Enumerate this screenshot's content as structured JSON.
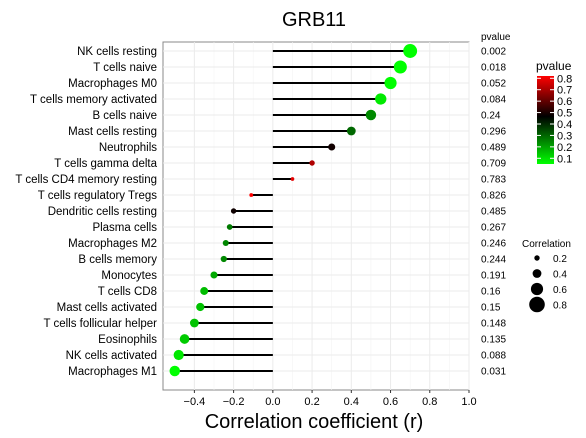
{
  "chart_data": {
    "type": "lollipop",
    "title": "GRB11",
    "xlabel": "Correlation coefficient (r)",
    "xlim": [
      -0.56,
      1.0
    ],
    "xticks": [
      -0.4,
      -0.2,
      0.0,
      0.2,
      0.4,
      0.6,
      0.8,
      1.0
    ],
    "xtick_labels": [
      "−0.4",
      "−0.2",
      "0.0",
      "0.2",
      "0.4",
      "0.6",
      "0.8",
      "1.0"
    ],
    "pvalue_header": "pvalue",
    "grid": true,
    "rows": [
      {
        "label": "NK cells resting",
        "r": 0.7,
        "p": 0.002,
        "p_label": "0.002"
      },
      {
        "label": "T cells naive",
        "r": 0.65,
        "p": 0.018,
        "p_label": "0.018"
      },
      {
        "label": "Macrophages M0",
        "r": 0.6,
        "p": 0.052,
        "p_label": "0.052"
      },
      {
        "label": "T cells memory activated",
        "r": 0.55,
        "p": 0.084,
        "p_label": "0.084"
      },
      {
        "label": "B cells naive",
        "r": 0.5,
        "p": 0.24,
        "p_label": "0.24"
      },
      {
        "label": "Mast cells resting",
        "r": 0.4,
        "p": 0.296,
        "p_label": "0.296"
      },
      {
        "label": "Neutrophils",
        "r": 0.3,
        "p": 0.489,
        "p_label": "0.489"
      },
      {
        "label": "T cells gamma delta",
        "r": 0.2,
        "p": 0.709,
        "p_label": "0.709"
      },
      {
        "label": "T cells CD4 memory resting",
        "r": 0.1,
        "p": 0.783,
        "p_label": "0.783"
      },
      {
        "label": "T cells regulatory Tregs",
        "r": -0.11,
        "p": 0.826,
        "p_label": "0.826"
      },
      {
        "label": "Dendritic cells resting",
        "r": -0.2,
        "p": 0.485,
        "p_label": "0.485"
      },
      {
        "label": "Plasma cells",
        "r": -0.22,
        "p": 0.267,
        "p_label": "0.267"
      },
      {
        "label": "Macrophages M2",
        "r": -0.24,
        "p": 0.246,
        "p_label": "0.246"
      },
      {
        "label": "B cells memory",
        "r": -0.25,
        "p": 0.244,
        "p_label": "0.244"
      },
      {
        "label": "Monocytes",
        "r": -0.3,
        "p": 0.191,
        "p_label": "0.191"
      },
      {
        "label": "T cells CD8",
        "r": -0.35,
        "p": 0.16,
        "p_label": "0.16"
      },
      {
        "label": "Mast cells activated",
        "r": -0.37,
        "p": 0.15,
        "p_label": "0.15"
      },
      {
        "label": "T cells follicular helper",
        "r": -0.4,
        "p": 0.148,
        "p_label": "0.148"
      },
      {
        "label": "Eosinophils",
        "r": -0.45,
        "p": 0.135,
        "p_label": "0.135"
      },
      {
        "label": "NK cells activated",
        "r": -0.48,
        "p": 0.088,
        "p_label": "0.088"
      },
      {
        "label": "Macrophages M1",
        "r": -0.5,
        "p": 0.031,
        "p_label": "0.031"
      }
    ],
    "color_legend": {
      "title": "pvalue",
      "ticks": [
        0.8,
        0.7,
        0.6,
        0.5,
        0.4,
        0.3,
        0.2,
        0.1
      ],
      "tick_labels": [
        "0.8",
        "0.7",
        "0.6",
        "0.5",
        "0.4",
        "0.3",
        "0.2",
        "0.1"
      ],
      "range": [
        0.05,
        0.82
      ],
      "colors": {
        "low": "#00ff00",
        "mid": "#000000",
        "high": "#ff0000"
      }
    },
    "size_legend": {
      "title": "Correlation",
      "values": [
        0.2,
        0.4,
        0.6,
        0.8
      ],
      "labels": [
        "0.2",
        "0.4",
        "0.6",
        "0.8"
      ]
    }
  }
}
